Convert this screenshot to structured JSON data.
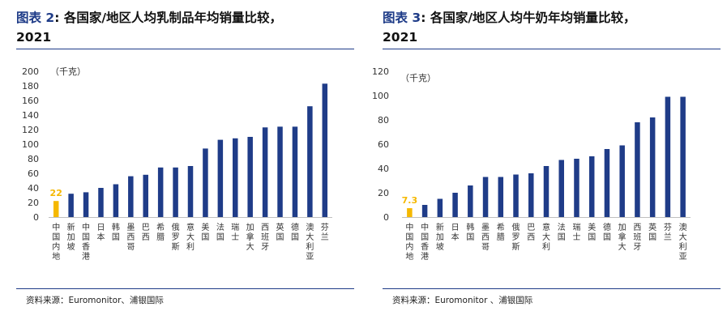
{
  "panels": [
    {
      "figure_word": "图表",
      "figure_no": "2",
      "title_rest": ": 各国家/地区人均乳制品年均销量比较，",
      "title_year": "2021",
      "source": "资料来源：Euromonitor、浦银国际"
    },
    {
      "figure_word": "图表",
      "figure_no": "3",
      "title_rest": ": 各国家/地区人均牛奶年均销量比较，",
      "title_year": "2021",
      "source": "资料来源：Euromonitor 、浦银国际"
    }
  ],
  "chart_data": [
    {
      "type": "bar",
      "unit_label": "（千克）",
      "categories": [
        "中国内地",
        "新加坡",
        "中国香港",
        "日本",
        "韩国",
        "墨西哥",
        "巴西",
        "希腊",
        "俄罗斯",
        "意大利",
        "美国",
        "法国",
        "瑞士",
        "加拿大",
        "西班牙",
        "英国",
        "德国",
        "澳大利亚",
        "芬兰"
      ],
      "values": [
        22,
        32,
        34,
        40,
        45,
        56,
        58,
        68,
        68,
        70,
        94,
        106,
        108,
        110,
        123,
        124,
        124,
        152,
        183
      ],
      "highlight_index": 0,
      "highlight_label": "22",
      "ylim": [
        0,
        200
      ],
      "yticks": [
        0,
        20,
        40,
        60,
        80,
        100,
        120,
        140,
        160,
        180,
        200
      ],
      "colors": {
        "bar": "#1f3c88",
        "highlight": "#f5b800",
        "axis": "#bfbfbf",
        "text": "#333333"
      }
    },
    {
      "type": "bar",
      "unit_label": "（千克）",
      "categories": [
        "中国内地",
        "中国香港",
        "新加坡",
        "日本",
        "韩国",
        "墨西哥",
        "希腊",
        "俄罗斯",
        "巴西",
        "意大利",
        "法国",
        "瑞士",
        "美国",
        "德国",
        "加拿大",
        "西班牙",
        "英国",
        "芬兰",
        "澳大利亚"
      ],
      "values": [
        7.3,
        10,
        15,
        20,
        26,
        33,
        33,
        35,
        36,
        42,
        47,
        48,
        50,
        56,
        59,
        78,
        82,
        99,
        99
      ],
      "highlight_index": 0,
      "highlight_label": "7.3",
      "ylim": [
        0,
        120
      ],
      "yticks": [
        0,
        20,
        40,
        60,
        80,
        100,
        120
      ],
      "colors": {
        "bar": "#1f3c88",
        "highlight": "#f5b800",
        "axis": "#bfbfbf",
        "text": "#333333"
      }
    }
  ]
}
